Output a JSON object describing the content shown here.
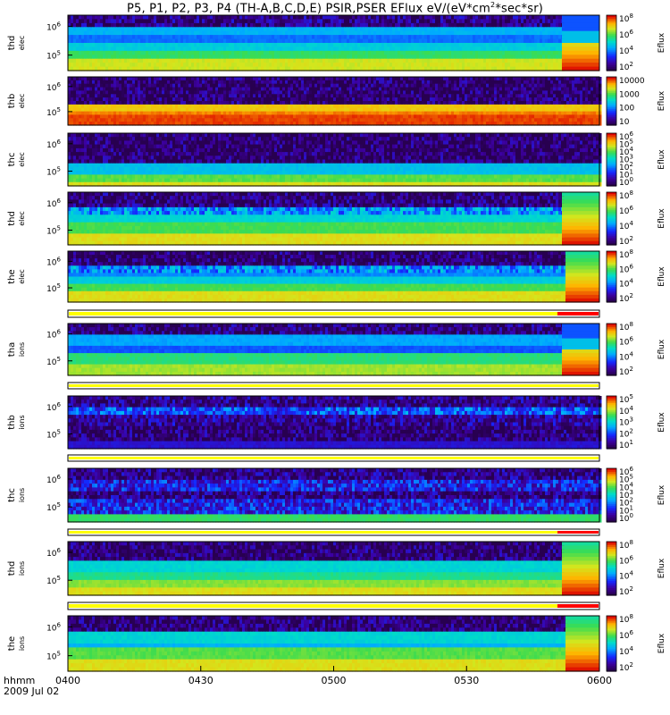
{
  "title": "P5, P1, P2, P3, P4 (TH-A,B,C,D,E) PSIR,PSER EFlux eV/(eV*cm2*sec*sr)",
  "chart_data": {
    "type": "heatmap",
    "title": "P5, P1, P2, P3, P4 (TH-A,B,C,D,E) PSIR,PSER EFlux eV/(eV*cm2*sec*sr)",
    "x_ticks": [
      "0400",
      "0430",
      "0500",
      "0530",
      "0600"
    ],
    "x_axis_label": "hhmm",
    "date_label": "2009 Jul 02",
    "colorbar_label": "Eflux",
    "panels": [
      {
        "label1": "thd",
        "label2": "elec",
        "yticks": [
          "10^6",
          "10^5"
        ],
        "cb_ticks": [
          "10^8",
          "10^6",
          "10^4",
          "10^2"
        ]
      },
      {
        "label1": "thb",
        "label2": "elec",
        "yticks": [
          "10^6",
          "10^5"
        ],
        "cb_ticks": [
          "10000",
          "1000",
          "100",
          "10"
        ]
      },
      {
        "label1": "thc",
        "label2": "elec",
        "yticks": [
          "10^6",
          "10^5"
        ],
        "cb_ticks": [
          "10^6",
          "10^5",
          "10^4",
          "10^3",
          "10^2",
          "10^1",
          "10^0"
        ]
      },
      {
        "label1": "thd",
        "label2": "elec",
        "yticks": [
          "10^6",
          "10^5"
        ],
        "cb_ticks": [
          "10^8",
          "10^6",
          "10^4",
          "10^2"
        ]
      },
      {
        "label1": "the",
        "label2": "elec",
        "yticks": [
          "10^6",
          "10^5"
        ],
        "cb_ticks": [
          "10^8",
          "10^6",
          "10^4",
          "10^2"
        ]
      },
      {
        "label1": "tha",
        "label2": "ions",
        "yticks": [
          "10^6",
          "10^5"
        ],
        "cb_ticks": [
          "10^8",
          "10^6",
          "10^4",
          "10^2"
        ]
      },
      {
        "label1": "thb",
        "label2": "ions",
        "yticks": [
          "10^6",
          "10^5"
        ],
        "cb_ticks": [
          "10^5",
          "10^4",
          "10^3",
          "10^2",
          "10^1"
        ]
      },
      {
        "label1": "thc",
        "label2": "ions",
        "yticks": [
          "10^6",
          "10^5"
        ],
        "cb_ticks": [
          "10^6",
          "10^5",
          "10^4",
          "10^3",
          "10^2",
          "10^1",
          "10^0"
        ]
      },
      {
        "label1": "thd",
        "label2": "ions",
        "yticks": [
          "10^6",
          "10^5"
        ],
        "cb_ticks": [
          "10^8",
          "10^6",
          "10^4",
          "10^2"
        ]
      },
      {
        "label1": "the",
        "label2": "ions",
        "yticks": [
          "10^6",
          "10^5"
        ],
        "cb_ticks": [
          "10^8",
          "10^6",
          "10^4",
          "10^2"
        ]
      }
    ]
  }
}
